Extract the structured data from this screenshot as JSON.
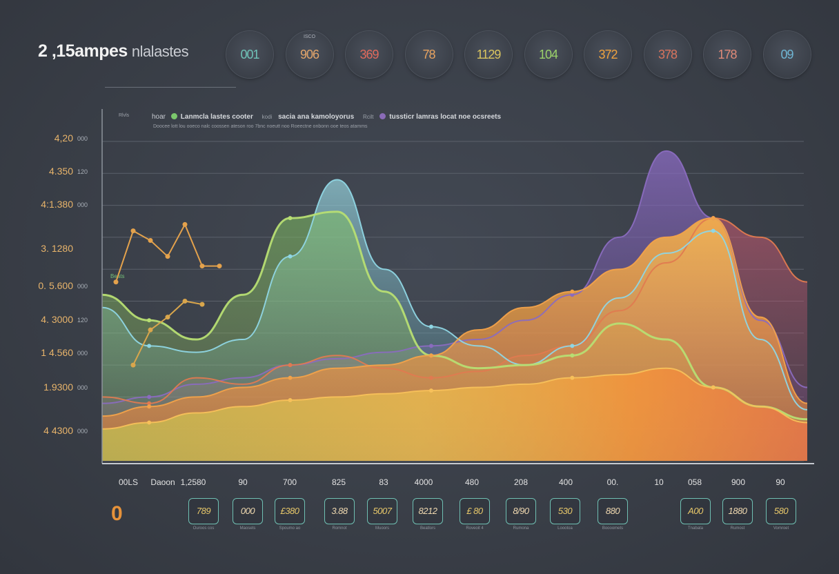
{
  "title": {
    "main": "2 ,15ampes",
    "sub": "nlalastes"
  },
  "kpis": [
    {
      "cap": "",
      "value": "001",
      "color": "#6fc3b8"
    },
    {
      "cap": "ISCO",
      "value": "906",
      "color": "#e3a56a"
    },
    {
      "cap": "",
      "value": "369",
      "color": "#e06a5c"
    },
    {
      "cap": "",
      "value": "78",
      "color": "#e8a35f"
    },
    {
      "cap": "",
      "value": "1129",
      "color": "#d9c45f"
    },
    {
      "cap": "",
      "value": "104",
      "color": "#9bd26a"
    },
    {
      "cap": "",
      "value": "372",
      "color": "#f0a33f"
    },
    {
      "cap": "",
      "value": "378",
      "color": "#d9745d"
    },
    {
      "cap": "",
      "value": "178",
      "color": "#e08a78"
    },
    {
      "cap": "",
      "value": "09",
      "color": "#6fb6d4"
    }
  ],
  "legend": {
    "key": "hoar",
    "entries": [
      {
        "label": "Lanmcla lastes cooter",
        "color": "#7bc86c"
      },
      {
        "label": "sacia ana kamoloyorus",
        "color": "#e09a4a"
      },
      {
        "label": "tussticr lamras locat noe ocsreets",
        "color": "#8a6bb8"
      }
    ],
    "unit_a": "kodi",
    "unit_b": "Rcilt",
    "sub": "Doocee lott lou ooeco nalc coossen ateson roo 7bnc noeutt noo Roeectne onbonn ooe teos atamms"
  },
  "y_caption_top": "Rlvls",
  "y_caption_side": "Beats",
  "y_ticks": [
    "4,20",
    "4.350",
    "4:1.380",
    "3. 1280",
    "0. 5.600",
    "4. 3000",
    "1 4.560",
    "1.9300",
    "4 4300"
  ],
  "y_ticks_right": [
    "000",
    "120",
    "000",
    "",
    "000",
    "120",
    "000",
    "000",
    "000"
  ],
  "zero_label": "0",
  "cards": [
    {
      "value": "789",
      "sub": "Ouroos cos"
    },
    {
      "value": "000",
      "sub": "Maosets"
    },
    {
      "value": "£380",
      "sub": "Spoumo ao"
    },
    {
      "value": "3.88",
      "sub": "Romnot"
    },
    {
      "value": "5007",
      "sub": "Muoors"
    },
    {
      "value": "8212",
      "sub": "Beatlors"
    },
    {
      "value": "£ 80",
      "sub": "Roveoit 4"
    },
    {
      "value": "8/90",
      "sub": "Rumona"
    },
    {
      "value": "530",
      "sub": "Loootoa"
    },
    {
      "value": "880",
      "sub": "Boooomets"
    },
    {
      "value": "A00",
      "sub": "Tnabata"
    },
    {
      "value": "1880",
      "sub": "Rumost"
    },
    {
      "value": "580",
      "sub": "Vomroet"
    }
  ],
  "colors": {
    "background": "#383d46",
    "green": "#a8d46a",
    "teal": "#8fd3e0",
    "orange": "#f0a040",
    "purple": "#7d5cb0",
    "magenta": "#b2547a",
    "accent_tick": "#e8b46b"
  },
  "chart_data": {
    "type": "area",
    "title": "",
    "xlabel": "",
    "ylabel": "",
    "ylim": [
      0,
      1000
    ],
    "categories": [
      "00LS",
      "Daoon",
      "1,2580",
      "90",
      "700",
      "825",
      "83",
      "4000",
      "480",
      "208",
      "400",
      "00.",
      "10",
      "058",
      "900",
      "90"
    ],
    "series": [
      {
        "values": [
          520,
          440,
          380,
          520,
          760,
          780,
          530,
          330,
          290,
          300,
          330,
          430,
          380,
          230,
          170,
          130
        ]
      },
      {
        "values": [
          480,
          360,
          340,
          380,
          640,
          880,
          600,
          420,
          360,
          300,
          360,
          510,
          650,
          720,
          380,
          160
        ]
      },
      {
        "values": [
          200,
          180,
          260,
          240,
          300,
          330,
          290,
          260,
          280,
          330,
          360,
          470,
          620,
          760,
          700,
          560
        ]
      },
      {
        "values": [
          140,
          170,
          200,
          230,
          260,
          290,
          300,
          330,
          410,
          480,
          530,
          600,
          700,
          760,
          450,
          180
        ]
      },
      {
        "values": [
          180,
          200,
          240,
          260,
          300,
          320,
          340,
          360,
          380,
          440,
          520,
          700,
          970,
          760,
          440,
          230
        ]
      },
      {
        "values": [
          100,
          120,
          150,
          170,
          190,
          200,
          210,
          220,
          230,
          240,
          260,
          270,
          290,
          230,
          170,
          120
        ]
      }
    ],
    "marker_series": [
      {
        "points": [
          [
            0,
            560
          ],
          [
            1,
            720
          ],
          [
            2,
            690
          ],
          [
            3,
            640
          ],
          [
            4,
            740
          ],
          [
            5,
            610
          ],
          [
            6,
            610
          ]
        ],
        "color": "#e4a24c"
      },
      {
        "points": [
          [
            1,
            300
          ],
          [
            2,
            410
          ],
          [
            3,
            450
          ],
          [
            4,
            500
          ],
          [
            5,
            490
          ]
        ],
        "color": "#d9a64c"
      }
    ],
    "grid": true,
    "legend": "top"
  }
}
